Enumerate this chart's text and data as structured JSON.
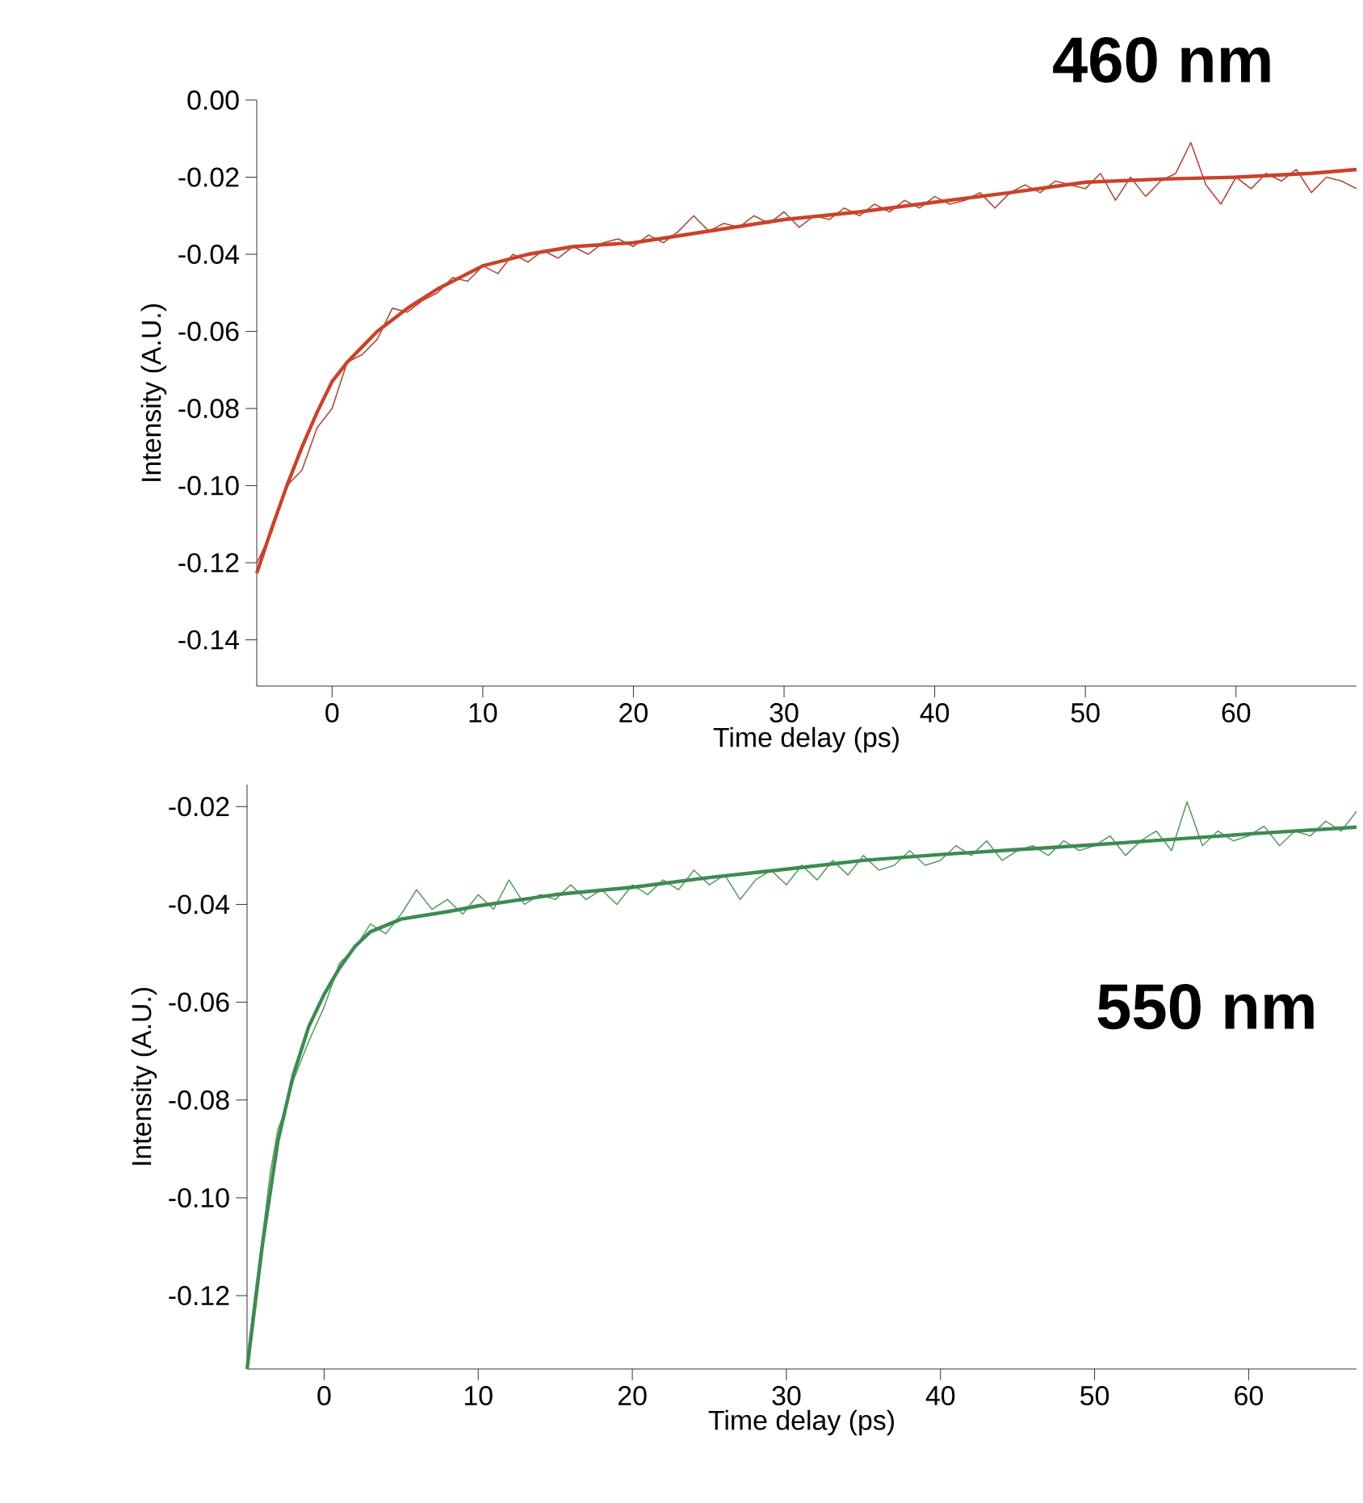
{
  "chart_data": [
    {
      "type": "line",
      "xlabel": "Time delay (ps)",
      "ylabel": "Intensity (A.U.)",
      "annotations": [
        "460 nm"
      ],
      "xlim": [
        -5,
        68
      ],
      "ylim": [
        -0.152,
        0.0
      ],
      "xticks": [
        0,
        10,
        20,
        30,
        40,
        50,
        60
      ],
      "yticks": [
        {
          "value": 0.0,
          "label": "0.00"
        },
        {
          "value": -0.02,
          "label": "-0.02"
        },
        {
          "value": -0.04,
          "label": "-0.04"
        },
        {
          "value": -0.06,
          "label": "-0.06"
        },
        {
          "value": -0.08,
          "label": "-0.08"
        },
        {
          "value": -0.1,
          "label": "-0.10"
        },
        {
          "value": -0.12,
          "label": "-0.12"
        },
        {
          "value": -0.14,
          "label": "-0.14"
        }
      ],
      "series": [
        {
          "color": "#b04a3a",
          "x": [
            -5,
            -4,
            -3,
            -2,
            -1,
            0,
            1,
            2,
            3,
            4,
            5,
            6,
            7,
            8,
            9,
            10,
            11,
            12,
            13,
            14,
            15,
            16,
            17,
            18,
            19,
            20,
            21,
            22,
            23,
            24,
            25,
            26,
            27,
            28,
            29,
            30,
            31,
            32,
            33,
            34,
            35,
            36,
            37,
            38,
            39,
            40,
            41,
            42,
            43,
            44,
            45,
            46,
            47,
            48,
            49,
            50,
            51,
            52,
            53,
            54,
            55,
            56,
            57,
            58,
            59,
            60,
            61,
            62,
            63,
            64,
            65,
            66,
            67,
            68
          ],
          "values": [
            -0.12,
            -0.112,
            -0.1,
            -0.096,
            -0.085,
            -0.08,
            -0.068,
            -0.066,
            -0.062,
            -0.054,
            -0.055,
            -0.052,
            -0.05,
            -0.046,
            -0.047,
            -0.043,
            -0.045,
            -0.04,
            -0.042,
            -0.039,
            -0.041,
            -0.038,
            -0.04,
            -0.037,
            -0.036,
            -0.038,
            -0.035,
            -0.037,
            -0.034,
            -0.03,
            -0.034,
            -0.032,
            -0.033,
            -0.03,
            -0.032,
            -0.029,
            -0.033,
            -0.03,
            -0.031,
            -0.028,
            -0.03,
            -0.027,
            -0.029,
            -0.026,
            -0.028,
            -0.025,
            -0.027,
            -0.026,
            -0.024,
            -0.028,
            -0.024,
            -0.022,
            -0.024,
            -0.021,
            -0.022,
            -0.023,
            -0.019,
            -0.026,
            -0.02,
            -0.025,
            -0.021,
            -0.019,
            -0.011,
            -0.022,
            -0.027,
            -0.02,
            -0.023,
            -0.019,
            -0.021,
            -0.018,
            -0.024,
            -0.02,
            -0.021,
            -0.023
          ]
        },
        {
          "color": "#c8432a",
          "x": [
            -5,
            -4,
            -3,
            -2,
            -1,
            0,
            1,
            2,
            3,
            4,
            5,
            7,
            10,
            13,
            16,
            20,
            25,
            30,
            35,
            40,
            45,
            50,
            55,
            60,
            65,
            68
          ],
          "values": [
            -0.1227,
            -0.111,
            -0.1,
            -0.09,
            -0.081,
            -0.073,
            -0.068,
            -0.064,
            -0.06,
            -0.057,
            -0.054,
            -0.049,
            -0.043,
            -0.04,
            -0.038,
            -0.037,
            -0.034,
            -0.031,
            -0.029,
            -0.0265,
            -0.024,
            -0.0213,
            -0.0205,
            -0.02,
            -0.019,
            -0.018
          ]
        }
      ]
    },
    {
      "type": "line",
      "xlabel": "Time delay (ps)",
      "ylabel": "Intensity (A.U.)",
      "annotations": [
        "550 nm"
      ],
      "xlim": [
        -5,
        67
      ],
      "ylim": [
        -0.135,
        -0.0155
      ],
      "xticks": [
        0,
        10,
        20,
        30,
        40,
        50,
        60
      ],
      "yticks": [
        {
          "value": -0.02,
          "label": "-0.02"
        },
        {
          "value": -0.04,
          "label": "-0.04"
        },
        {
          "value": -0.06,
          "label": "-0.06"
        },
        {
          "value": -0.08,
          "label": "-0.08"
        },
        {
          "value": -0.1,
          "label": "-0.10"
        },
        {
          "value": -0.12,
          "label": "-0.12"
        }
      ],
      "series": [
        {
          "color": "#5c9e64",
          "x": [
            -5,
            -4.5,
            -4,
            -3.5,
            -3,
            -2.5,
            -2,
            -1,
            0,
            1,
            2,
            3,
            4,
            5,
            6,
            7,
            8,
            9,
            10,
            11,
            12,
            13,
            14,
            15,
            16,
            17,
            18,
            19,
            20,
            21,
            22,
            23,
            24,
            25,
            26,
            27,
            28,
            29,
            30,
            31,
            32,
            33,
            34,
            35,
            36,
            37,
            38,
            39,
            40,
            41,
            42,
            43,
            44,
            45,
            46,
            47,
            48,
            49,
            50,
            51,
            52,
            53,
            54,
            55,
            56,
            57,
            58,
            59,
            60,
            61,
            62,
            63,
            64,
            65,
            66,
            67
          ],
          "values": [
            -0.133,
            -0.12,
            -0.108,
            -0.095,
            -0.086,
            -0.082,
            -0.076,
            -0.068,
            -0.061,
            -0.052,
            -0.049,
            -0.044,
            -0.046,
            -0.042,
            -0.037,
            -0.041,
            -0.039,
            -0.042,
            -0.038,
            -0.041,
            -0.035,
            -0.04,
            -0.038,
            -0.039,
            -0.036,
            -0.039,
            -0.037,
            -0.04,
            -0.036,
            -0.038,
            -0.035,
            -0.037,
            -0.033,
            -0.036,
            -0.034,
            -0.039,
            -0.035,
            -0.033,
            -0.036,
            -0.032,
            -0.035,
            -0.031,
            -0.034,
            -0.03,
            -0.033,
            -0.032,
            -0.029,
            -0.032,
            -0.031,
            -0.028,
            -0.03,
            -0.027,
            -0.031,
            -0.029,
            -0.028,
            -0.03,
            -0.027,
            -0.029,
            -0.028,
            -0.026,
            -0.03,
            -0.027,
            -0.025,
            -0.029,
            -0.019,
            -0.028,
            -0.025,
            -0.027,
            -0.026,
            -0.024,
            -0.028,
            -0.025,
            -0.026,
            -0.023,
            -0.025,
            -0.021
          ]
        },
        {
          "color": "#3e8a52",
          "x": [
            -5,
            -4,
            -3,
            -2,
            -1,
            0,
            1,
            2,
            3,
            5,
            8,
            10,
            15,
            20,
            25,
            30,
            35,
            40,
            45,
            50,
            55,
            60,
            67
          ],
          "values": [
            -0.135,
            -0.1095,
            -0.0884,
            -0.0749,
            -0.065,
            -0.0584,
            -0.053,
            -0.0486,
            -0.0456,
            -0.043,
            -0.0415,
            -0.0403,
            -0.038,
            -0.0365,
            -0.0345,
            -0.0328,
            -0.031,
            -0.0298,
            -0.0288,
            -0.0278,
            -0.0267,
            -0.0256,
            -0.0242
          ]
        }
      ]
    }
  ]
}
